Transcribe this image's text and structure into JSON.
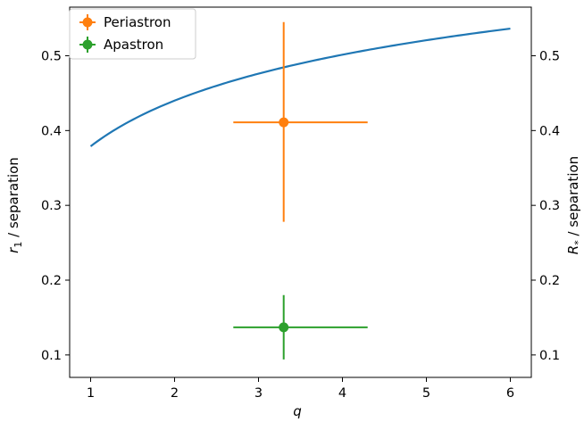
{
  "chart_data": {
    "type": "scatter",
    "xlabel": "q",
    "ylabel_left_var": "r",
    "ylabel_left_sub": "1",
    "ylabel_left_rest": " / separation",
    "ylabel_right_var": "R",
    "ylabel_right_sub": "*",
    "ylabel_right_rest": " / separation",
    "xlim": [
      0.75,
      6.25
    ],
    "ylim": [
      0.07,
      0.565
    ],
    "xticks": [
      1,
      2,
      3,
      4,
      5,
      6
    ],
    "xtick_labels": [
      "1",
      "2",
      "3",
      "4",
      "5",
      "6"
    ],
    "yticks": [
      0.1,
      0.2,
      0.3,
      0.4,
      0.5
    ],
    "ytick_labels": [
      "0.1",
      "0.2",
      "0.3",
      "0.4",
      "0.5"
    ],
    "right_yticks": [
      0.1,
      0.2,
      0.3,
      0.4,
      0.5
    ],
    "right_ytick_labels": [
      "0.1",
      "0.2",
      "0.3",
      "0.4",
      "0.5"
    ],
    "legend_position": "top-left",
    "curve": {
      "color": "#1f77b4",
      "x_range": [
        1,
        6
      ]
    },
    "series": [
      {
        "name": "Periastron",
        "color": "#ff7f0e",
        "x": 3.3,
        "y": 0.411,
        "x_err": [
          2.7,
          4.3
        ],
        "y_err": [
          0.278,
          0.545
        ]
      },
      {
        "name": "Apastron",
        "color": "#2ca02c",
        "x": 3.3,
        "y": 0.137,
        "x_err": [
          2.7,
          4.3
        ],
        "y_err": [
          0.094,
          0.18
        ]
      }
    ]
  }
}
